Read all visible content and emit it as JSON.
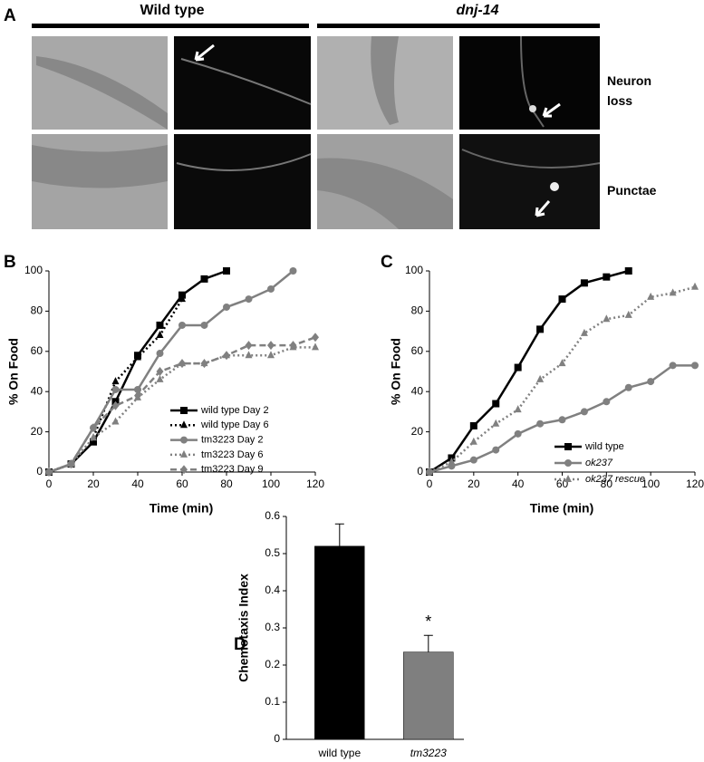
{
  "panel_a": {
    "label": "A",
    "groups": [
      "Wild type",
      "dnj-14"
    ],
    "rows": [
      "Neuron loss",
      "Punctae"
    ]
  },
  "chart_data": [
    {
      "type": "line",
      "panel": "B",
      "xlabel": "Time (min)",
      "ylabel": "% On Food",
      "x": [
        0,
        10,
        20,
        30,
        40,
        50,
        60,
        70,
        80,
        90,
        100,
        110,
        120
      ],
      "xlim": [
        0,
        120
      ],
      "xticks": [
        0,
        20,
        40,
        60,
        80,
        100,
        120
      ],
      "ylim": [
        0,
        100
      ],
      "yticks": [
        0,
        20,
        40,
        60,
        80,
        100
      ],
      "grid": false,
      "series": [
        {
          "name": "wild type Day 2",
          "color": "#000000",
          "dash": "solid",
          "marker": "square",
          "values": [
            0,
            4,
            15,
            35,
            58,
            73,
            88,
            96,
            100,
            null,
            null,
            null,
            null
          ]
        },
        {
          "name": "wild type Day 6",
          "color": "#000000",
          "dash": "dotted",
          "marker": "triangle",
          "values": [
            0,
            4,
            17,
            45,
            57,
            68,
            86,
            null,
            null,
            null,
            null,
            null,
            null
          ]
        },
        {
          "name": "tm3223 Day 2",
          "color": "#808080",
          "dash": "solid",
          "marker": "circle",
          "values": [
            0,
            4,
            22,
            41,
            41,
            59,
            73,
            73,
            82,
            86,
            91,
            100,
            null
          ]
        },
        {
          "name": "tm3223 Day 6",
          "color": "#808080",
          "dash": "dotted",
          "marker": "triangle",
          "values": [
            0,
            4,
            17,
            25,
            37,
            46,
            54,
            54,
            58,
            58,
            58,
            62,
            62
          ]
        },
        {
          "name": "tm3223 Day 9",
          "color": "#808080",
          "dash": "dashed",
          "marker": "diamond",
          "values": [
            0,
            4,
            22,
            33,
            38,
            50,
            54,
            54,
            58,
            63,
            63,
            63,
            67
          ]
        }
      ]
    },
    {
      "type": "line",
      "panel": "C",
      "xlabel": "Time (min)",
      "ylabel": "% On Food",
      "x": [
        0,
        10,
        20,
        30,
        40,
        50,
        60,
        70,
        80,
        90,
        100,
        110,
        120
      ],
      "xlim": [
        0,
        120
      ],
      "xticks": [
        0,
        20,
        40,
        60,
        80,
        100,
        120
      ],
      "ylim": [
        0,
        100
      ],
      "yticks": [
        0,
        20,
        40,
        60,
        80,
        100
      ],
      "grid": false,
      "series": [
        {
          "name": "wild type",
          "color": "#000000",
          "dash": "solid",
          "marker": "square",
          "values": [
            0,
            7,
            23,
            34,
            52,
            71,
            86,
            94,
            97,
            100,
            null,
            null,
            null
          ]
        },
        {
          "name": "ok237",
          "color": "#808080",
          "dash": "solid",
          "marker": "circle",
          "values": [
            0,
            3,
            6,
            11,
            19,
            24,
            26,
            30,
            35,
            42,
            45,
            53,
            53
          ]
        },
        {
          "name": "ok237 rescue",
          "color": "#808080",
          "dash": "dotted",
          "marker": "triangle",
          "values": [
            0,
            5,
            15,
            24,
            31,
            46,
            54,
            69,
            76,
            78,
            87,
            89,
            92
          ]
        }
      ]
    },
    {
      "type": "bar",
      "panel": "D",
      "ylabel": "Chemotaxis Index",
      "categories": [
        "wild type",
        "tm3223"
      ],
      "values": [
        0.52,
        0.235
      ],
      "errors": [
        0.06,
        0.045
      ],
      "colors": [
        "#000000",
        "#7f7f7f"
      ],
      "annotations": [
        "",
        "*"
      ],
      "ylim": [
        0,
        0.6
      ],
      "yticks": [
        0,
        0.1,
        0.2,
        0.3,
        0.4,
        0.5,
        0.6
      ],
      "grid": false
    }
  ]
}
